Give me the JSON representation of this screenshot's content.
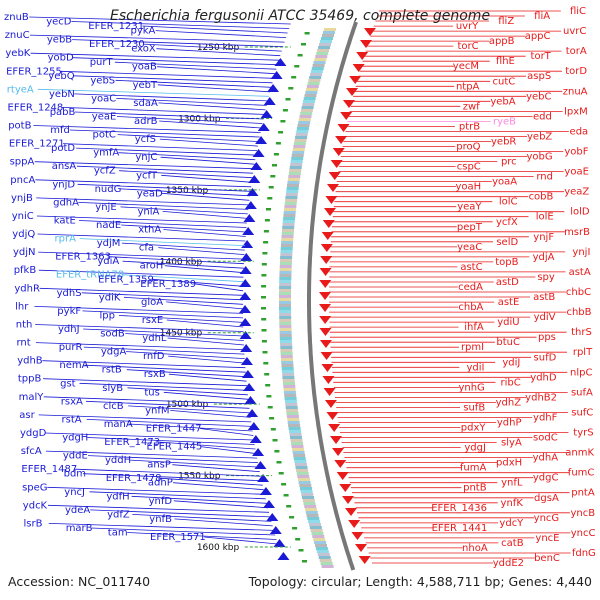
{
  "title": "Escherichia fergusonii ATCC 35469, complete genome",
  "accession": "Accession: NC_011740",
  "summary": "Topology: circular; Length: 4,588,711 bp; Genes: 4,440",
  "colors": {
    "forward_strand": "#1a1ad6",
    "reverse_strand": "#e81a1a",
    "rna_label": "#55bbee",
    "rna_label_alt": "#ff88dd",
    "backbone": "#777777"
  },
  "ruler": [
    {
      "label": "1250 kbp"
    },
    {
      "label": "1300 kbp"
    },
    {
      "label": "1350 kbp"
    },
    {
      "label": "1400 kbp"
    },
    {
      "label": "1450 kbp"
    },
    {
      "label": "1500 kbp"
    },
    {
      "label": "1550 kbp"
    },
    {
      "label": "1600 kbp"
    }
  ],
  "forward_genes": [
    {
      "label": "znuB"
    },
    {
      "label": "yecD"
    },
    {
      "label": "EFER_1231"
    },
    {
      "label": "pykA"
    },
    {
      "label": "znuC"
    },
    {
      "label": "yebB"
    },
    {
      "label": "EFER_1230"
    },
    {
      "label": "exoX"
    },
    {
      "label": "yebK"
    },
    {
      "label": "yobD"
    },
    {
      "label": "purT"
    },
    {
      "label": "yoaB"
    },
    {
      "label": "EFER_1255"
    },
    {
      "label": "yebQ"
    },
    {
      "label": "yebS"
    },
    {
      "label": "yebT"
    },
    {
      "label": "rtyeA",
      "type": "rna"
    },
    {
      "label": "yebN"
    },
    {
      "label": "yoaC"
    },
    {
      "label": "sdaA"
    },
    {
      "label": "EFER_1248"
    },
    {
      "label": "pabB"
    },
    {
      "label": "yeaE"
    },
    {
      "label": "adrB"
    },
    {
      "label": "potB"
    },
    {
      "label": "mfd"
    },
    {
      "label": "potC"
    },
    {
      "label": "ycfS"
    },
    {
      "label": "EFER_1271"
    },
    {
      "label": "potD"
    },
    {
      "label": "ymfA"
    },
    {
      "label": "ynjC"
    },
    {
      "label": "sppA"
    },
    {
      "label": "ansA"
    },
    {
      "label": "ycfZ"
    },
    {
      "label": "ycfT"
    },
    {
      "label": "pncA"
    },
    {
      "label": "ynjD"
    },
    {
      "label": "nudG"
    },
    {
      "label": "yeaD"
    },
    {
      "label": "ynjB"
    },
    {
      "label": "gdhA"
    },
    {
      "label": "ynjE"
    },
    {
      "label": "yniA"
    },
    {
      "label": "yniC"
    },
    {
      "label": "katE"
    },
    {
      "label": "nadE"
    },
    {
      "label": "xthA"
    },
    {
      "label": "ydjQ"
    },
    {
      "label": "rprA",
      "type": "rna"
    },
    {
      "label": "ydjM"
    },
    {
      "label": "cfa"
    },
    {
      "label": "ydjN"
    },
    {
      "label": "EFER_1363"
    },
    {
      "label": "ydiA"
    },
    {
      "label": "aroH"
    },
    {
      "label": "pfkB"
    },
    {
      "label": "EFER_tRNA78",
      "type": "rna"
    },
    {
      "label": "EFER_1359"
    },
    {
      "label": "EFER_1389"
    },
    {
      "label": "ydhR"
    },
    {
      "label": "ydhS"
    },
    {
      "label": "ydiK"
    },
    {
      "label": "gloA"
    },
    {
      "label": "lhr"
    },
    {
      "label": "pykF"
    },
    {
      "label": "lpp"
    },
    {
      "label": "rsxE"
    },
    {
      "label": "nth"
    },
    {
      "label": "ydhJ"
    },
    {
      "label": "sodB"
    },
    {
      "label": "ydhL"
    },
    {
      "label": "rnt"
    },
    {
      "label": "purR"
    },
    {
      "label": "ydgA"
    },
    {
      "label": "rnfD"
    },
    {
      "label": "ydhB"
    },
    {
      "label": "nemA"
    },
    {
      "label": "rstB"
    },
    {
      "label": "rsxB"
    },
    {
      "label": "tppB"
    },
    {
      "label": "gst"
    },
    {
      "label": "slyB"
    },
    {
      "label": "tus"
    },
    {
      "label": "malY"
    },
    {
      "label": "rsxA"
    },
    {
      "label": "clcB"
    },
    {
      "label": "ynfM"
    },
    {
      "label": "asr"
    },
    {
      "label": "rstA"
    },
    {
      "label": "manA"
    },
    {
      "label": "EFER_1447"
    },
    {
      "label": "ydgD"
    },
    {
      "label": "ydgH"
    },
    {
      "label": "EFER_1473"
    },
    {
      "label": "EFER_1445"
    },
    {
      "label": "sfcA"
    },
    {
      "label": "yddE"
    },
    {
      "label": "yddH"
    },
    {
      "label": "ansP"
    },
    {
      "label": "EFER_1487"
    },
    {
      "label": "bdm"
    },
    {
      "label": "EFER_1478"
    },
    {
      "label": "adhP"
    },
    {
      "label": "speG"
    },
    {
      "label": "yncJ"
    },
    {
      "label": "ydfH"
    },
    {
      "label": "ynfD"
    },
    {
      "label": "ydcK"
    },
    {
      "label": "ydeA"
    },
    {
      "label": "ydfZ"
    },
    {
      "label": "ynfB"
    },
    {
      "label": "lsrB"
    },
    {
      "label": "marB"
    },
    {
      "label": "tam"
    },
    {
      "label": "EFER_1571"
    }
  ],
  "reverse_genes": [
    {
      "label": "fliC"
    },
    {
      "label": "fliA"
    },
    {
      "label": "fliZ"
    },
    {
      "label": "uvrY"
    },
    {
      "label": "uvrC"
    },
    {
      "label": "appC"
    },
    {
      "label": "appB"
    },
    {
      "label": "torC"
    },
    {
      "label": "torA"
    },
    {
      "label": "torT"
    },
    {
      "label": "flhE"
    },
    {
      "label": "yecM"
    },
    {
      "label": "torD"
    },
    {
      "label": "aspS"
    },
    {
      "label": "cutC"
    },
    {
      "label": "ntpA"
    },
    {
      "label": "znuA"
    },
    {
      "label": "yebC"
    },
    {
      "label": "yebA"
    },
    {
      "label": "zwf"
    },
    {
      "label": "lpxM"
    },
    {
      "label": "edd"
    },
    {
      "label": "ryeB",
      "type": "rna2"
    },
    {
      "label": "ptrB"
    },
    {
      "label": "eda"
    },
    {
      "label": "yebZ"
    },
    {
      "label": "yebR"
    },
    {
      "label": "proQ"
    },
    {
      "label": "yobF"
    },
    {
      "label": "yobG"
    },
    {
      "label": "prc"
    },
    {
      "label": "cspC"
    },
    {
      "label": "yoaE"
    },
    {
      "label": "rnd"
    },
    {
      "label": "yoaA"
    },
    {
      "label": "yoaH"
    },
    {
      "label": "yeaZ"
    },
    {
      "label": "cobB"
    },
    {
      "label": "lolC"
    },
    {
      "label": "yeaY"
    },
    {
      "label": "lolD"
    },
    {
      "label": "lolE"
    },
    {
      "label": "ycfX"
    },
    {
      "label": "pepT"
    },
    {
      "label": "msrB"
    },
    {
      "label": "ynjF"
    },
    {
      "label": "selD"
    },
    {
      "label": "yeaC"
    },
    {
      "label": "ynjI"
    },
    {
      "label": "ydjA"
    },
    {
      "label": "topB"
    },
    {
      "label": "astC"
    },
    {
      "label": "astA"
    },
    {
      "label": "spy"
    },
    {
      "label": "astD"
    },
    {
      "label": "cedA"
    },
    {
      "label": "chbC"
    },
    {
      "label": "astB"
    },
    {
      "label": "astE"
    },
    {
      "label": "chbA"
    },
    {
      "label": "chbB"
    },
    {
      "label": "ydiV"
    },
    {
      "label": "ydiU"
    },
    {
      "label": "ihfA"
    },
    {
      "label": "thrS"
    },
    {
      "label": "pps"
    },
    {
      "label": "btuC"
    },
    {
      "label": "rpmI"
    },
    {
      "label": "rplT"
    },
    {
      "label": "sufD"
    },
    {
      "label": "ydiJ"
    },
    {
      "label": "ydiI"
    },
    {
      "label": "nlpC"
    },
    {
      "label": "ydhD"
    },
    {
      "label": "ribC"
    },
    {
      "label": "ynhG"
    },
    {
      "label": "sufA"
    },
    {
      "label": "ydhB2"
    },
    {
      "label": "ydhZ"
    },
    {
      "label": "sufB"
    },
    {
      "label": "sufC"
    },
    {
      "label": "ydhF"
    },
    {
      "label": "ydhP"
    },
    {
      "label": "pdxY"
    },
    {
      "label": "tyrS"
    },
    {
      "label": "sodC"
    },
    {
      "label": "slyA"
    },
    {
      "label": "ydgJ"
    },
    {
      "label": "anmK"
    },
    {
      "label": "ydhA"
    },
    {
      "label": "pdxH"
    },
    {
      "label": "fumA"
    },
    {
      "label": "fumC"
    },
    {
      "label": "ydgC"
    },
    {
      "label": "ynfL"
    },
    {
      "label": "pntB"
    },
    {
      "label": "pntA"
    },
    {
      "label": "dgsA"
    },
    {
      "label": "ynfK"
    },
    {
      "label": "EFER_1436"
    },
    {
      "label": "yncB"
    },
    {
      "label": "yncG"
    },
    {
      "label": "ydcY"
    },
    {
      "label": "EFER_1441"
    },
    {
      "label": "yncC"
    },
    {
      "label": "yncE"
    },
    {
      "label": "catB"
    },
    {
      "label": "nhoA"
    },
    {
      "label": "fdnG"
    },
    {
      "label": "benC"
    },
    {
      "label": "yddE2"
    }
  ]
}
